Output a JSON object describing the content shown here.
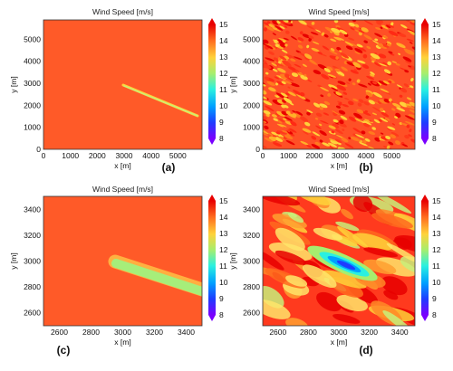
{
  "panels": [
    {
      "title": "Wind Speed [m/s]",
      "xlabel": "x [m]",
      "ylabel": "y [m]",
      "label": "(a)",
      "x_ticks": [
        "0",
        "1000",
        "2000",
        "3000",
        "4000",
        "5000"
      ],
      "y_ticks": [
        "0",
        "1000",
        "2000",
        "3000",
        "4000",
        "5000"
      ],
      "colorbar_ticks": [
        "8",
        "9",
        "10",
        "11",
        "12",
        "13",
        "14",
        "15"
      ]
    },
    {
      "title": "Wind Speed [m/s]",
      "xlabel": "x [m]",
      "ylabel": "y [m]",
      "label": "(b)",
      "x_ticks": [
        "0",
        "1000",
        "2000",
        "3000",
        "4000",
        "5000"
      ],
      "y_ticks": [
        "0",
        "1000",
        "2000",
        "3000",
        "4000",
        "5000"
      ],
      "colorbar_ticks": [
        "8",
        "9",
        "10",
        "11",
        "12",
        "13",
        "14",
        "15"
      ]
    },
    {
      "title": "Wind Speed [m/s]",
      "xlabel": "x [m]",
      "ylabel": "y [m]",
      "label": "(c)",
      "x_ticks": [
        "2600",
        "2800",
        "3000",
        "3200",
        "3400"
      ],
      "y_ticks": [
        "2600",
        "2800",
        "3000",
        "3200",
        "3400"
      ],
      "colorbar_ticks": [
        "8",
        "9",
        "10",
        "11",
        "12",
        "13",
        "14",
        "15"
      ]
    },
    {
      "title": "Wind Speed [m/s]",
      "xlabel": "x [m]",
      "ylabel": "y [m]",
      "label": "(d)",
      "x_ticks": [
        "2600",
        "2800",
        "3000",
        "3200",
        "3400"
      ],
      "y_ticks": [
        "2600",
        "2800",
        "3000",
        "3200",
        "3400"
      ],
      "colorbar_ticks": [
        "8",
        "9",
        "10",
        "11",
        "12",
        "13",
        "14",
        "15"
      ]
    }
  ],
  "chart_data": [
    {
      "type": "heatmap",
      "title": "Wind Speed [m/s]",
      "xlabel": "x [m]",
      "ylabel": "y [m]",
      "xlim": [
        0,
        6000
      ],
      "ylim": [
        0,
        6000
      ],
      "colorbar": {
        "label": "",
        "range": [
          8,
          15
        ],
        "colormap": "jet"
      },
      "background_value": 14,
      "wake": {
        "type": "line",
        "from": [
          3000,
          3000
        ],
        "to": [
          5900,
          1600
        ],
        "value": 12
      }
    },
    {
      "type": "heatmap",
      "title": "Wind Speed [m/s]",
      "xlabel": "x [m]",
      "ylabel": "y [m]",
      "xlim": [
        0,
        6000
      ],
      "ylim": [
        0,
        6000
      ],
      "colorbar": {
        "label": "",
        "range": [
          8,
          15
        ],
        "colormap": "jet"
      },
      "field": "turbulent",
      "value_range": [
        13,
        15
      ]
    },
    {
      "type": "heatmap",
      "title": "Wind Speed [m/s]",
      "xlabel": "x [m]",
      "ylabel": "y [m]",
      "xlim": [
        2500,
        3500
      ],
      "ylim": [
        2500,
        3500
      ],
      "colorbar": {
        "label": "",
        "range": [
          8,
          15
        ],
        "colormap": "jet"
      },
      "background_value": 14,
      "wake": {
        "type": "band",
        "from": [
          2950,
          3000
        ],
        "to": [
          3500,
          2780
        ],
        "outer_value": 13,
        "core_value": 12
      }
    },
    {
      "type": "heatmap",
      "title": "Wind Speed [m/s]",
      "xlabel": "x [m]",
      "ylabel": "y [m]",
      "xlim": [
        2500,
        3500
      ],
      "ylim": [
        2500,
        3500
      ],
      "colorbar": {
        "label": "",
        "range": [
          8,
          15
        ],
        "colormap": "jet"
      },
      "field": "turbulent",
      "value_range": [
        9,
        15
      ],
      "wake_minimum": {
        "at": [
          3050,
          2970
        ],
        "value": 9
      }
    }
  ]
}
